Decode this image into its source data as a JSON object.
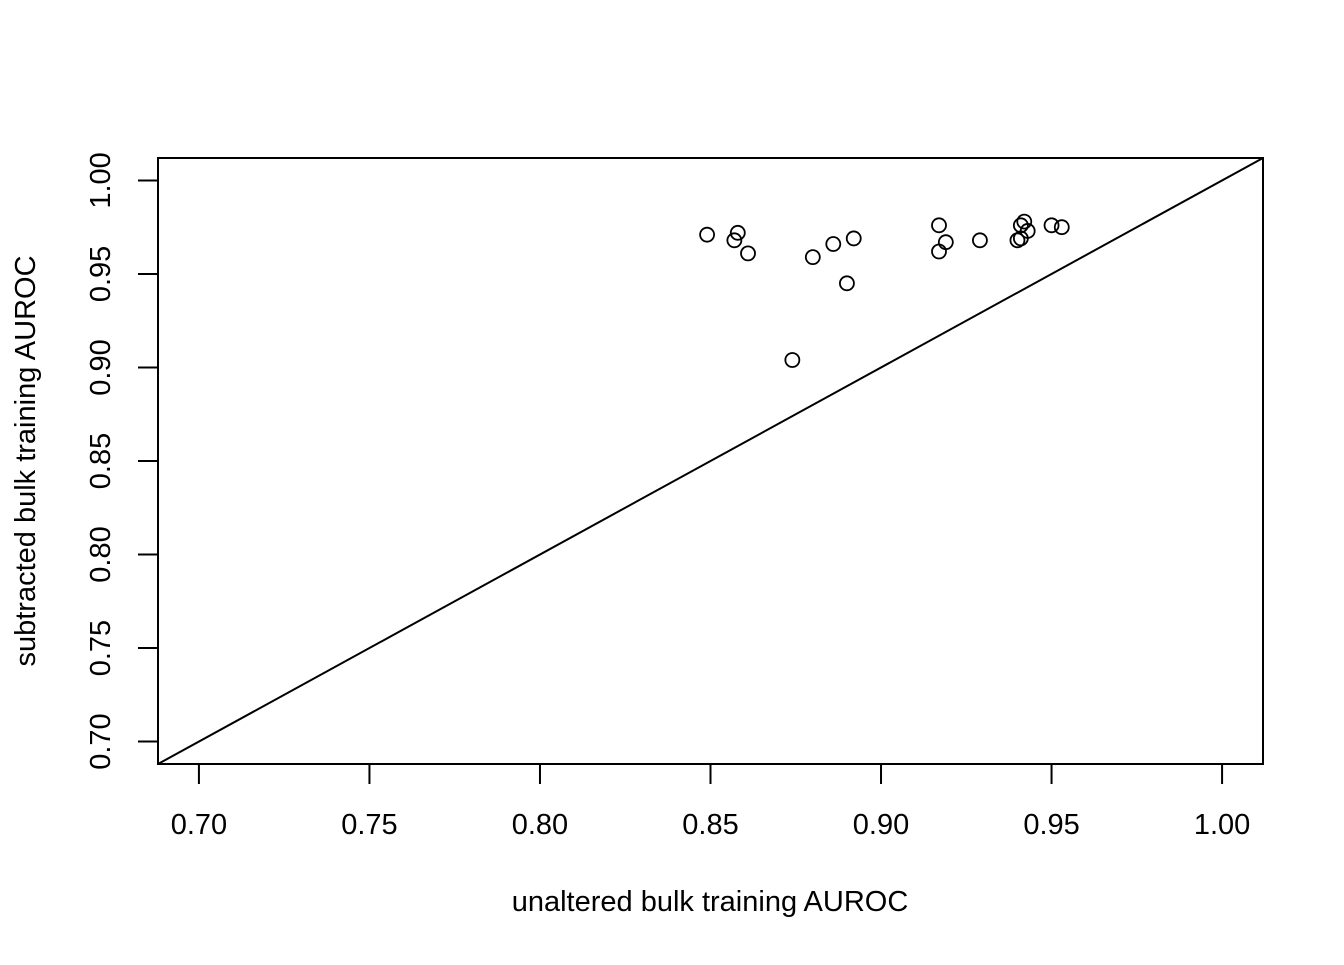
{
  "chart_data": {
    "type": "scatter",
    "title": "",
    "xlabel": "unaltered bulk training AUROC",
    "ylabel": "subtracted bulk training AUROC",
    "xlim": [
      0.688,
      1.012
    ],
    "ylim": [
      0.688,
      1.012
    ],
    "xticks": [
      "0.70",
      "0.75",
      "0.80",
      "0.85",
      "0.90",
      "0.95",
      "1.00"
    ],
    "yticks": [
      "0.70",
      "0.75",
      "0.80",
      "0.85",
      "0.90",
      "0.95",
      "1.00"
    ],
    "grid": false,
    "reference_line": {
      "type": "identity",
      "slope": 1,
      "intercept": 0
    },
    "marker": "open-circle",
    "points": [
      {
        "x": 0.849,
        "y": 0.971
      },
      {
        "x": 0.857,
        "y": 0.968
      },
      {
        "x": 0.858,
        "y": 0.972
      },
      {
        "x": 0.861,
        "y": 0.961
      },
      {
        "x": 0.874,
        "y": 0.904
      },
      {
        "x": 0.88,
        "y": 0.959
      },
      {
        "x": 0.886,
        "y": 0.966
      },
      {
        "x": 0.89,
        "y": 0.945
      },
      {
        "x": 0.892,
        "y": 0.969
      },
      {
        "x": 0.917,
        "y": 0.962
      },
      {
        "x": 0.917,
        "y": 0.976
      },
      {
        "x": 0.919,
        "y": 0.967
      },
      {
        "x": 0.929,
        "y": 0.968
      },
      {
        "x": 0.94,
        "y": 0.968
      },
      {
        "x": 0.941,
        "y": 0.976
      },
      {
        "x": 0.941,
        "y": 0.969
      },
      {
        "x": 0.942,
        "y": 0.978
      },
      {
        "x": 0.943,
        "y": 0.973
      },
      {
        "x": 0.95,
        "y": 0.976
      },
      {
        "x": 0.953,
        "y": 0.975
      }
    ]
  }
}
